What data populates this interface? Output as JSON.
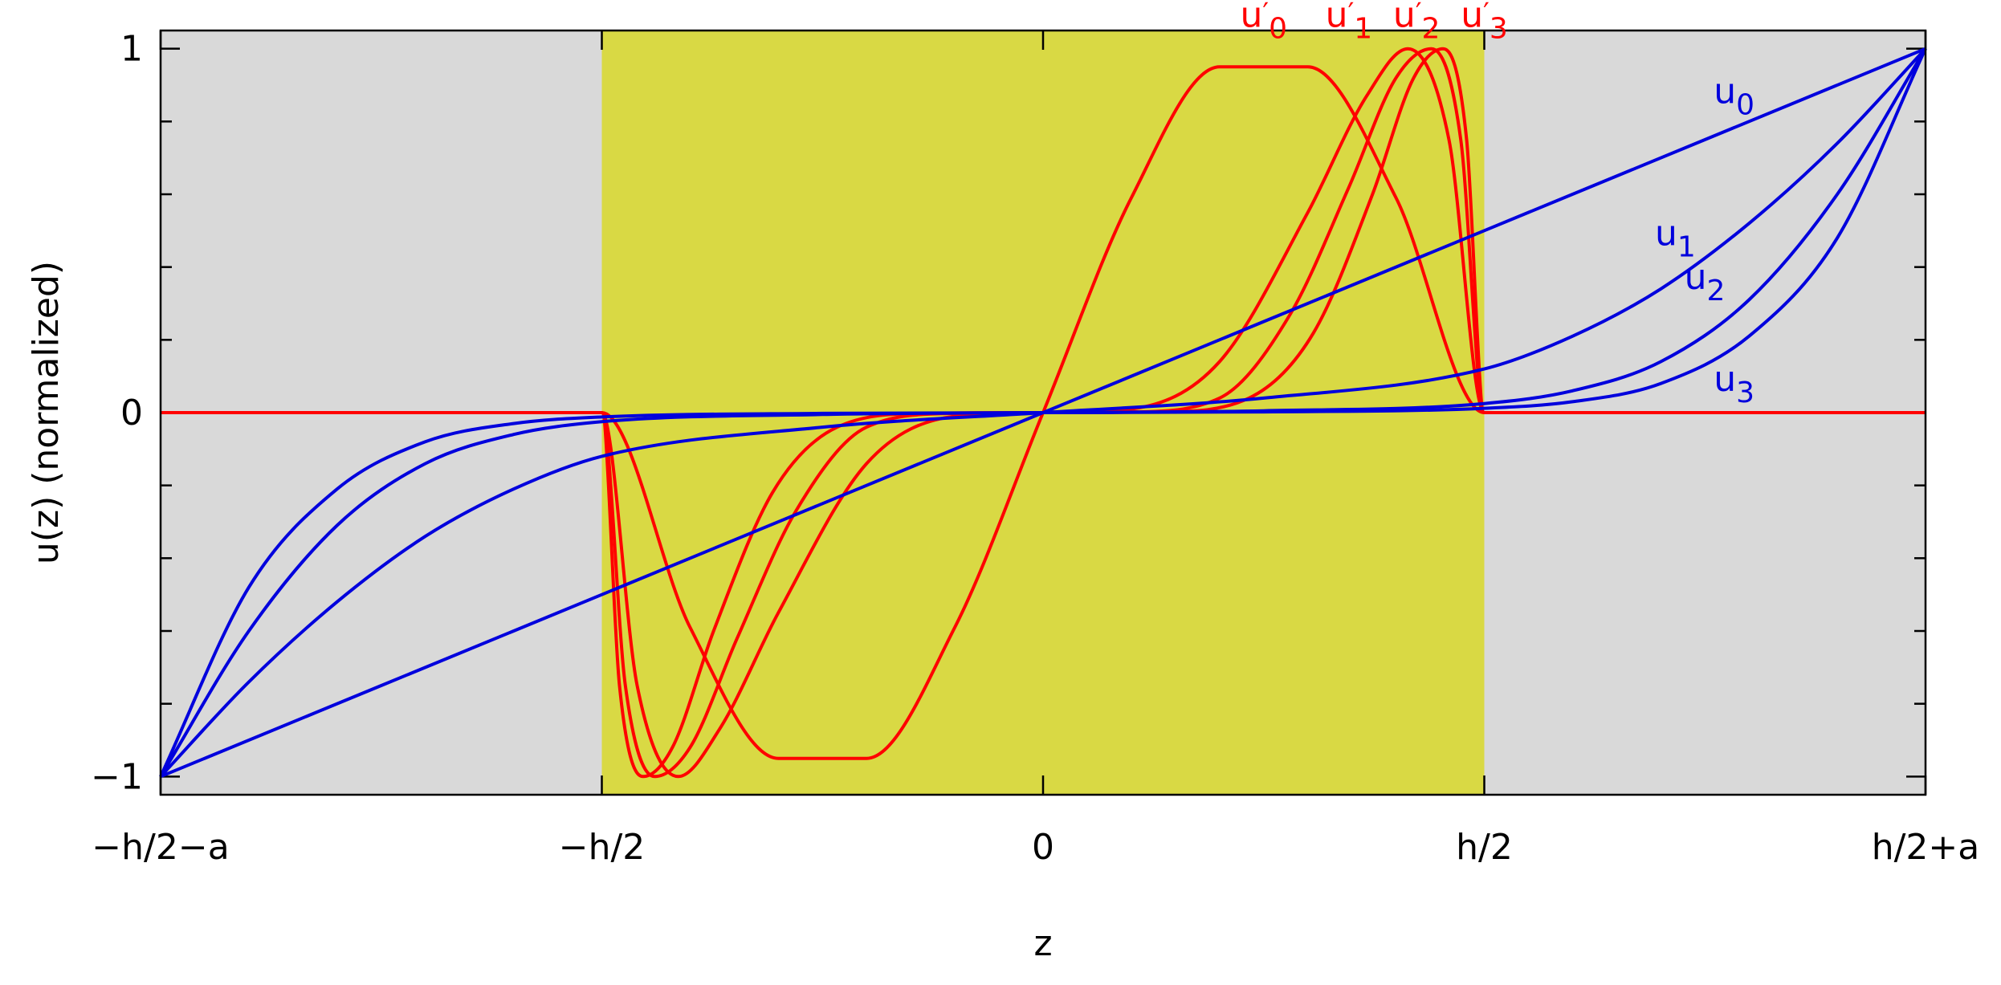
{
  "chart_data": {
    "type": "line",
    "title": "",
    "xlabel": "z",
    "ylabel": "u(z) (normalized)",
    "xlim": [
      -1.5,
      1.5
    ],
    "ylim": [
      -1.05,
      1.05
    ],
    "x_ticks": [
      {
        "value": -1.5,
        "label": "−h/2−a"
      },
      {
        "value": -0.75,
        "label": "−h/2"
      },
      {
        "value": 0,
        "label": "0"
      },
      {
        "value": 0.75,
        "label": "h/2"
      },
      {
        "value": 1.5,
        "label": "h/2+a"
      }
    ],
    "y_ticks": [
      {
        "value": -1,
        "label": "−1"
      },
      {
        "value": 0,
        "label": "0"
      },
      {
        "value": 1,
        "label": "1"
      }
    ],
    "y_minor_step": 0.2,
    "regions": [
      {
        "name": "outer-left",
        "x": [
          -1.5,
          -0.75
        ],
        "color": "#d9d9d9"
      },
      {
        "name": "core",
        "x": [
          -0.75,
          0.75
        ],
        "color": "#d9d944"
      },
      {
        "name": "outer-right",
        "x": [
          0.75,
          1.5
        ],
        "color": "#d9d9d9"
      }
    ],
    "grid": false,
    "legend": "none",
    "colors": {
      "u": "#0000dd",
      "u_prime": "#ff0000"
    },
    "series": [
      {
        "name": "u0",
        "label_base": "u",
        "label_sub": "0",
        "prime": false,
        "color": "#0000dd",
        "label_pos": [
          1.14,
          0.85
        ],
        "x": [
          -1.5,
          -0.75,
          0,
          0.75,
          1.5
        ],
        "y": [
          -1,
          -0.5,
          0,
          0.5,
          1
        ]
      },
      {
        "name": "u1",
        "label_base": "u",
        "label_sub": "1",
        "prime": false,
        "color": "#0000dd",
        "label_pos": [
          1.04,
          0.46
        ],
        "x": [
          -1.5,
          -1.35,
          -1.2,
          -1.05,
          -0.9,
          -0.75,
          -0.375,
          0,
          0.375,
          0.75,
          0.9,
          1.05,
          1.2,
          1.35,
          1.5
        ],
        "y": [
          -1,
          -0.74,
          -0.52,
          -0.34,
          -0.21,
          -0.12,
          -0.04,
          0,
          0.04,
          0.12,
          0.21,
          0.34,
          0.52,
          0.74,
          1
        ]
      },
      {
        "name": "u2",
        "label_base": "u",
        "label_sub": "2",
        "prime": false,
        "color": "#0000dd",
        "label_pos": [
          1.09,
          0.34
        ],
        "x": [
          -1.5,
          -1.35,
          -1.2,
          -1.05,
          -0.9,
          -0.75,
          -0.375,
          0,
          0.375,
          0.75,
          0.9,
          1.05,
          1.2,
          1.35,
          1.5
        ],
        "y": [
          -1,
          -0.6,
          -0.31,
          -0.14,
          -0.06,
          -0.025,
          -0.005,
          0,
          0.005,
          0.025,
          0.06,
          0.14,
          0.31,
          0.6,
          1
        ]
      },
      {
        "name": "u3",
        "label_base": "u",
        "label_sub": "3",
        "prime": false,
        "color": "#0000dd",
        "label_pos": [
          1.14,
          0.06
        ],
        "x": [
          -1.5,
          -1.35,
          -1.2,
          -1.05,
          -0.9,
          -0.75,
          -0.375,
          0,
          0.375,
          0.75,
          0.9,
          1.05,
          1.2,
          1.35,
          1.5
        ],
        "y": [
          -1,
          -0.48,
          -0.21,
          -0.08,
          -0.03,
          -0.012,
          -0.002,
          0,
          0.002,
          0.012,
          0.03,
          0.08,
          0.21,
          0.48,
          1
        ]
      },
      {
        "name": "u'0",
        "label_base": "u",
        "label_sub": "0",
        "prime": true,
        "color": "#ff0000",
        "label_pos": [
          0.335,
          1.06
        ],
        "x": [
          -1.5,
          -0.75,
          -0.6,
          -0.45,
          -0.3,
          -0.15,
          0,
          0.15,
          0.3,
          0.45,
          0.6,
          0.75,
          1.5
        ],
        "y": [
          0,
          0,
          -0.59,
          -0.95,
          -0.95,
          -0.59,
          0,
          0.59,
          0.95,
          0.95,
          0.59,
          0,
          0
        ]
      },
      {
        "name": "u'1",
        "label_base": "u",
        "label_sub": "1",
        "prime": true,
        "color": "#ff0000",
        "label_pos": [
          0.48,
          1.06
        ],
        "x": [
          -1.5,
          -0.75,
          -0.69,
          -0.62,
          -0.55,
          -0.45,
          -0.3,
          -0.15,
          0,
          0.15,
          0.3,
          0.45,
          0.55,
          0.62,
          0.69,
          0.75,
          1.5
        ],
        "y": [
          0,
          0,
          -0.75,
          -1,
          -0.87,
          -0.55,
          -0.14,
          -0.01,
          0,
          0.01,
          0.14,
          0.55,
          0.87,
          1,
          0.75,
          0,
          0
        ]
      },
      {
        "name": "u'2",
        "label_base": "u",
        "label_sub": "2",
        "prime": true,
        "color": "#ff0000",
        "label_pos": [
          0.595,
          1.06
        ],
        "x": [
          -1.5,
          -0.75,
          -0.71,
          -0.66,
          -0.6,
          -0.52,
          -0.42,
          -0.3,
          -0.15,
          0,
          0.15,
          0.3,
          0.42,
          0.52,
          0.6,
          0.66,
          0.71,
          0.75,
          1.5
        ],
        "y": [
          0,
          0,
          -0.75,
          -1,
          -0.92,
          -0.62,
          -0.27,
          -0.04,
          -0.002,
          0,
          0.002,
          0.04,
          0.27,
          0.62,
          0.92,
          1,
          0.75,
          0,
          0
        ]
      },
      {
        "name": "u'3",
        "label_base": "u",
        "label_sub": "3",
        "prime": true,
        "color": "#ff0000",
        "label_pos": [
          0.71,
          1.06
        ],
        "x": [
          -1.5,
          -0.75,
          -0.72,
          -0.68,
          -0.63,
          -0.56,
          -0.46,
          -0.35,
          -0.2,
          0,
          0.2,
          0.35,
          0.46,
          0.56,
          0.63,
          0.68,
          0.72,
          0.75,
          1.5
        ],
        "y": [
          0,
          0,
          -0.75,
          -1,
          -0.92,
          -0.6,
          -0.22,
          -0.04,
          -0.002,
          0,
          0.002,
          0.04,
          0.22,
          0.6,
          0.92,
          1,
          0.75,
          0,
          0
        ]
      }
    ]
  }
}
